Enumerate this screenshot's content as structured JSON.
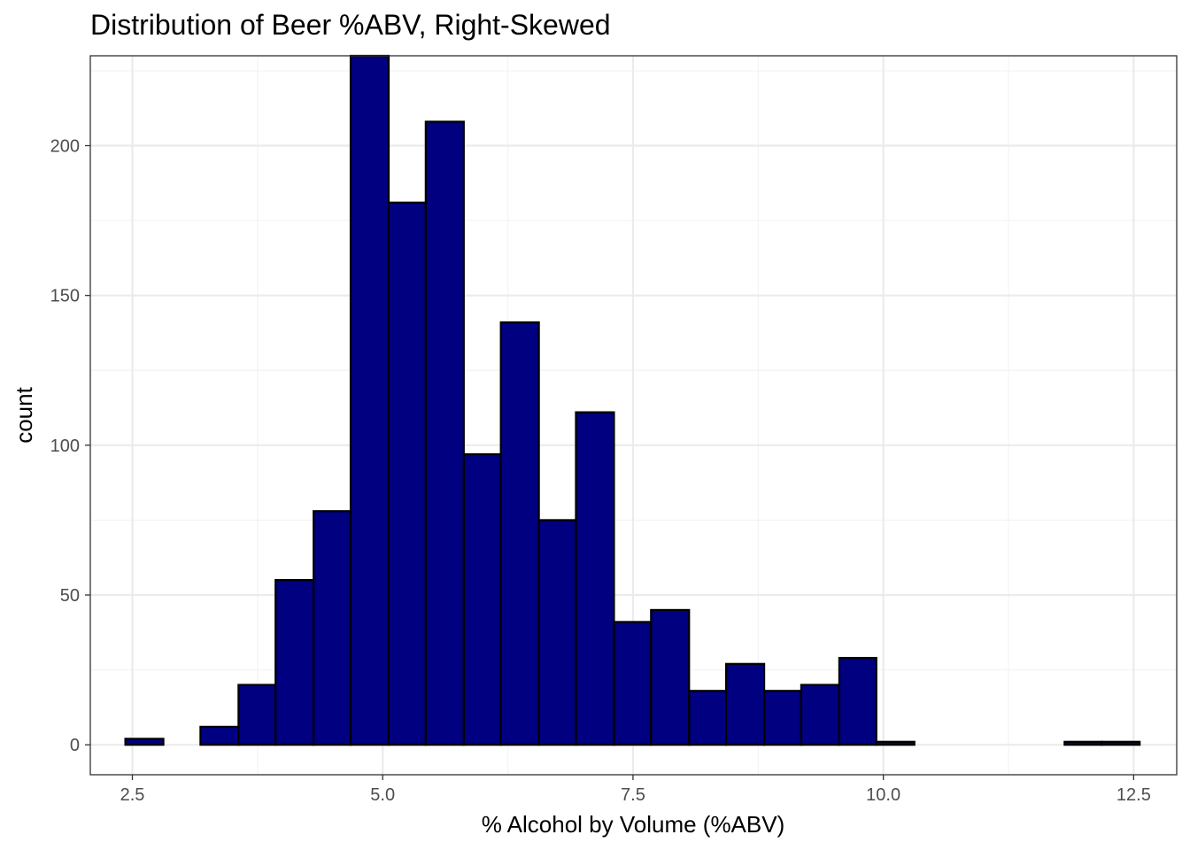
{
  "chart_data": {
    "type": "bar",
    "title": "Distribution of Beer %ABV, Right-Skewed",
    "xlabel": "% Alcohol by Volume (%ABV)",
    "ylabel": "count",
    "xlim": [
      2.08,
      12.93
    ],
    "ylim": [
      -10,
      230
    ],
    "x_ticks": [
      2.5,
      5.0,
      7.5,
      10.0,
      12.5
    ],
    "x_tick_labels": [
      "2.5",
      "5.0",
      "7.5",
      "10.0",
      "12.5"
    ],
    "y_ticks": [
      0,
      50,
      100,
      150,
      200
    ],
    "y_tick_labels": [
      "0",
      "50",
      "100",
      "150",
      "200"
    ],
    "grid": true,
    "bins": [
      {
        "x0": 2.43,
        "x1": 2.81,
        "count": 2
      },
      {
        "x0": 2.81,
        "x1": 3.18,
        "count": 0
      },
      {
        "x0": 3.18,
        "x1": 3.56,
        "count": 6
      },
      {
        "x0": 3.56,
        "x1": 3.93,
        "count": 20
      },
      {
        "x0": 3.93,
        "x1": 4.31,
        "count": 55
      },
      {
        "x0": 4.31,
        "x1": 4.68,
        "count": 78
      },
      {
        "x0": 4.68,
        "x1": 5.06,
        "count": 230
      },
      {
        "x0": 5.06,
        "x1": 5.43,
        "count": 181
      },
      {
        "x0": 5.43,
        "x1": 5.81,
        "count": 208
      },
      {
        "x0": 5.81,
        "x1": 6.18,
        "count": 97
      },
      {
        "x0": 6.18,
        "x1": 6.56,
        "count": 141
      },
      {
        "x0": 6.56,
        "x1": 6.93,
        "count": 75
      },
      {
        "x0": 6.93,
        "x1": 7.31,
        "count": 111
      },
      {
        "x0": 7.31,
        "x1": 7.68,
        "count": 41
      },
      {
        "x0": 7.68,
        "x1": 8.06,
        "count": 45
      },
      {
        "x0": 8.06,
        "x1": 8.43,
        "count": 18
      },
      {
        "x0": 8.43,
        "x1": 8.81,
        "count": 27
      },
      {
        "x0": 8.81,
        "x1": 9.18,
        "count": 18
      },
      {
        "x0": 9.18,
        "x1": 9.56,
        "count": 20
      },
      {
        "x0": 9.56,
        "x1": 9.93,
        "count": 29
      },
      {
        "x0": 9.93,
        "x1": 10.31,
        "count": 1
      },
      {
        "x0": 10.31,
        "x1": 10.68,
        "count": 0
      },
      {
        "x0": 10.68,
        "x1": 11.06,
        "count": 0
      },
      {
        "x0": 11.06,
        "x1": 11.43,
        "count": 0
      },
      {
        "x0": 11.43,
        "x1": 11.81,
        "count": 0
      },
      {
        "x0": 11.81,
        "x1": 12.18,
        "count": 1
      },
      {
        "x0": 12.18,
        "x1": 12.56,
        "count": 1
      }
    ],
    "colors": {
      "bar_fill": "#000080",
      "bar_stroke": "#000000",
      "grid_major": "#ebebeb",
      "grid_minor": "#f3f3f3",
      "panel_border": "#333333",
      "tick_text": "#4d4d4d"
    }
  }
}
